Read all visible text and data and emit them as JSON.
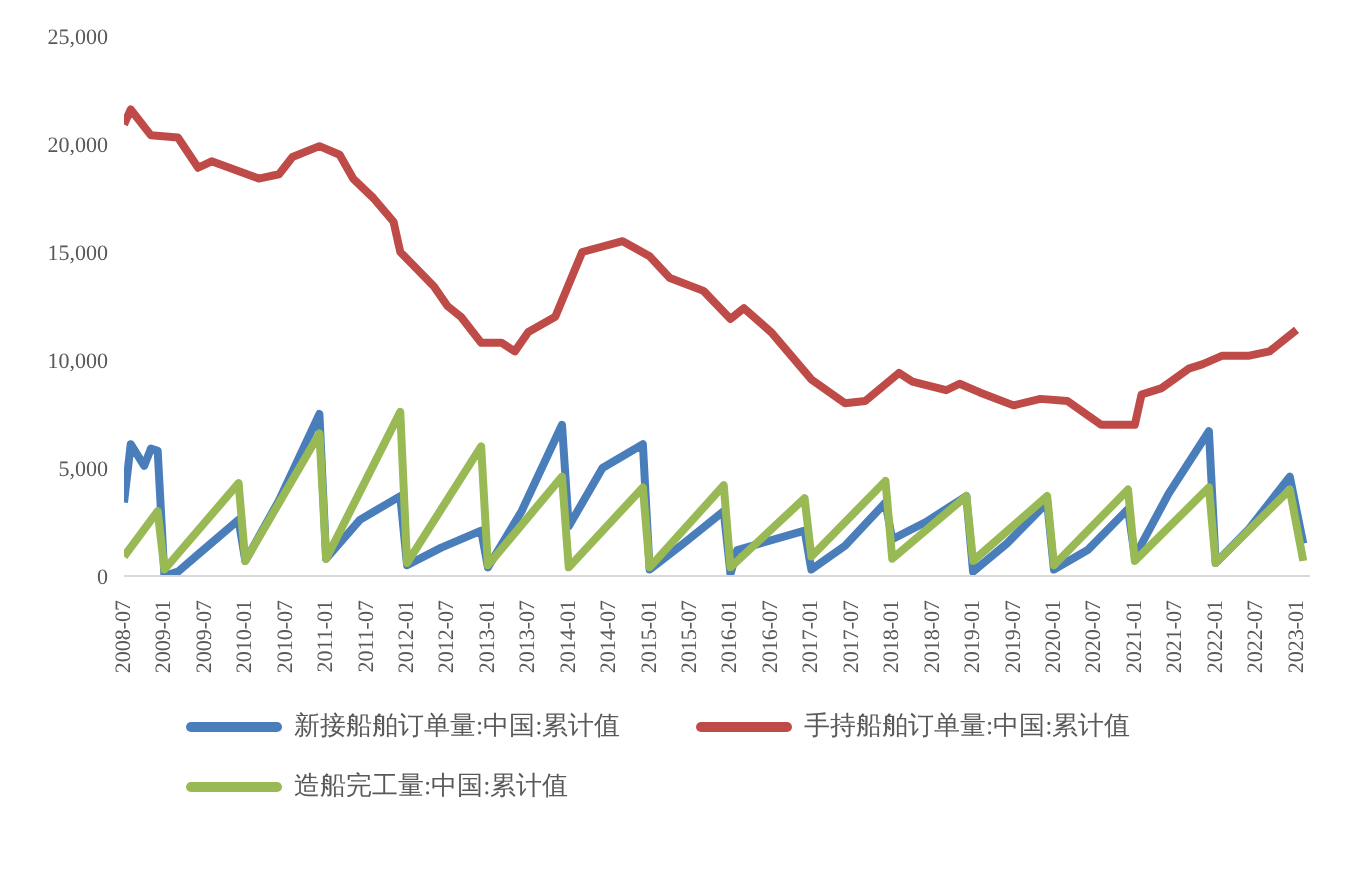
{
  "chart_data": {
    "type": "line",
    "xlim": [
      "2008-07",
      "2023-03"
    ],
    "ylim": [
      0,
      25000
    ],
    "yticks": [
      0,
      {
        "value": 5000,
        "label": "5,000"
      },
      {
        "value": 10000,
        "label": "10,000"
      },
      {
        "value": 15000,
        "label": "15,000"
      },
      {
        "value": 20000,
        "label": "20,000"
      },
      {
        "value": 25000,
        "label": "25,000"
      }
    ],
    "xticks": [
      "2008-07",
      "2009-01",
      "2009-07",
      "2010-01",
      "2010-07",
      "2011-01",
      "2011-07",
      "2012-01",
      "2012-07",
      "2013-01",
      "2013-07",
      "2014-01",
      "2014-07",
      "2015-01",
      "2015-07",
      "2016-01",
      "2016-07",
      "2017-01",
      "2017-07",
      "2018-01",
      "2018-07",
      "2019-01",
      "2019-07",
      "2020-01",
      "2020-07",
      "2021-01",
      "2021-07",
      "2022-01",
      "2022-07",
      "2023-01"
    ],
    "legend": "bottom",
    "marker": "none",
    "line_style": "solid",
    "series": [
      {
        "name": "新接船舶订单量:中国:累计值",
        "color": "#4a7ebb",
        "x": [
          "2008-07",
          "2008-08",
          "2008-10",
          "2008-11",
          "2008-12",
          "2009-01",
          "2009-03",
          "2009-06",
          "2009-12",
          "2010-01",
          "2010-06",
          "2010-12",
          "2011-01",
          "2011-06",
          "2011-12",
          "2012-01",
          "2012-06",
          "2012-12",
          "2013-01",
          "2013-06",
          "2013-12",
          "2014-01",
          "2014-06",
          "2014-12",
          "2015-01",
          "2015-06",
          "2015-12",
          "2016-01",
          "2016-02",
          "2016-12",
          "2017-01",
          "2017-06",
          "2017-12",
          "2018-01",
          "2018-06",
          "2018-12",
          "2019-01",
          "2019-06",
          "2019-12",
          "2020-01",
          "2020-06",
          "2020-12",
          "2021-01",
          "2021-06",
          "2021-12",
          "2022-01",
          "2022-06",
          "2022-12",
          "2023-02"
        ],
        "values": [
          3400,
          6100,
          5100,
          5900,
          5800,
          0,
          200,
          1000,
          2600,
          700,
          3500,
          7500,
          800,
          2600,
          3700,
          500,
          1300,
          2100,
          400,
          3000,
          7000,
          2300,
          5000,
          6100,
          300,
          1500,
          3000,
          100,
          1200,
          2100,
          300,
          1400,
          3400,
          1700,
          2500,
          3700,
          200,
          1500,
          3400,
          300,
          1200,
          3100,
          900,
          3800,
          6700,
          600,
          2200,
          4600,
          1500
        ]
      },
      {
        "name": "手持船舶订单量:中国:累计值",
        "color": "#be4b48",
        "x": [
          "2008-07",
          "2008-08",
          "2008-11",
          "2009-03",
          "2009-06",
          "2009-08",
          "2010-03",
          "2010-06",
          "2010-08",
          "2010-12",
          "2011-03",
          "2011-05",
          "2011-08",
          "2011-11",
          "2011-12",
          "2012-05",
          "2012-07",
          "2012-09",
          "2012-12",
          "2013-03",
          "2013-05",
          "2013-07",
          "2013-11",
          "2014-03",
          "2014-09",
          "2015-01",
          "2015-04",
          "2015-09",
          "2016-01",
          "2016-03",
          "2016-07",
          "2017-01",
          "2017-06",
          "2017-09",
          "2018-02",
          "2018-04",
          "2018-09",
          "2018-11",
          "2019-02",
          "2019-07",
          "2019-11",
          "2020-03",
          "2020-08",
          "2021-01",
          "2021-02",
          "2021-05",
          "2021-09",
          "2021-11",
          "2022-02",
          "2022-06",
          "2022-09",
          "2022-11",
          "2023-01"
        ],
        "values": [
          20900,
          21600,
          20400,
          20300,
          18900,
          19200,
          18400,
          18600,
          19400,
          19900,
          19500,
          18400,
          17500,
          16400,
          15000,
          13400,
          12500,
          12000,
          10800,
          10800,
          10400,
          11300,
          12000,
          15000,
          15500,
          14800,
          13800,
          13200,
          11900,
          12400,
          11300,
          9100,
          8000,
          8100,
          9400,
          9000,
          8600,
          8900,
          8500,
          7900,
          8200,
          8100,
          7000,
          7000,
          8400,
          8700,
          9600,
          9800,
          10200,
          10200,
          10400,
          10900,
          11400
        ]
      },
      {
        "name": "造船完工量:中国:累计值",
        "color": "#98b954",
        "x": [
          "2008-07",
          "2008-12",
          "2009-01",
          "2009-12",
          "2010-01",
          "2010-12",
          "2011-01",
          "2011-12",
          "2012-01",
          "2012-12",
          "2013-01",
          "2013-12",
          "2014-01",
          "2014-12",
          "2015-01",
          "2015-12",
          "2016-01",
          "2016-12",
          "2017-01",
          "2017-12",
          "2018-01",
          "2018-12",
          "2019-01",
          "2019-12",
          "2020-01",
          "2020-12",
          "2021-01",
          "2021-12",
          "2022-01",
          "2022-12",
          "2023-02"
        ],
        "values": [
          900,
          3000,
          300,
          4300,
          700,
          6600,
          800,
          7600,
          600,
          6000,
          500,
          4600,
          400,
          4100,
          400,
          4200,
          400,
          3600,
          900,
          4400,
          800,
          3700,
          700,
          3700,
          500,
          4000,
          700,
          4100,
          600,
          4000,
          700
        ]
      }
    ]
  }
}
